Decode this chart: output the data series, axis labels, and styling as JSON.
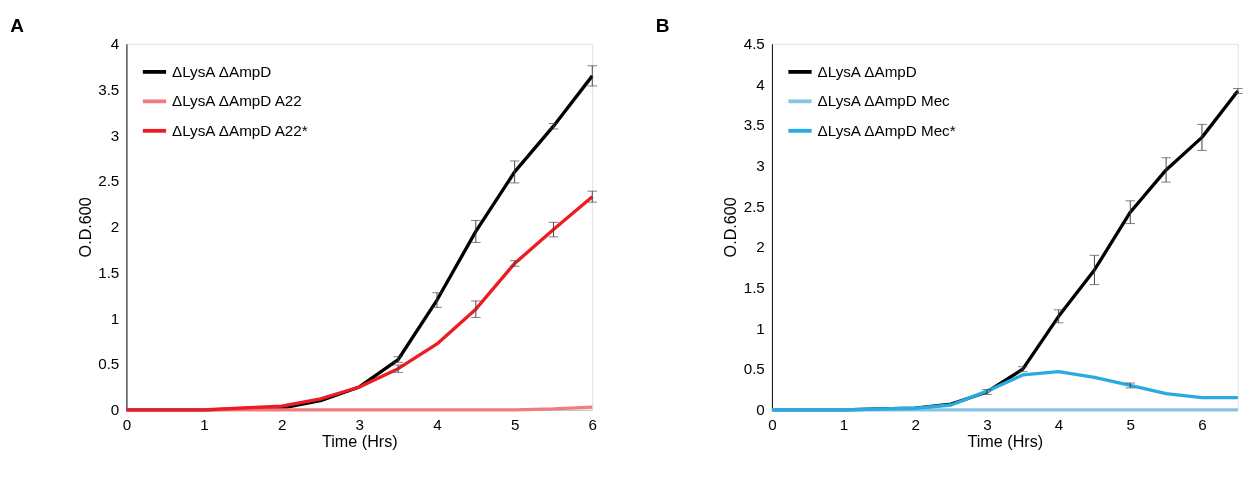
{
  "chart_data": [
    {
      "type": "line",
      "title": "A",
      "xlabel": "Time (Hrs)",
      "ylabel": "O.D.600",
      "x": [
        0,
        0.5,
        1,
        1.5,
        2,
        2.5,
        3,
        3.5,
        4,
        4.5,
        5,
        5.5,
        6
      ],
      "xlim": [
        0,
        6
      ],
      "xticks": [
        0,
        1,
        2,
        3,
        4,
        5,
        6
      ],
      "ylim": [
        0,
        4
      ],
      "yticks": [
        0,
        0.5,
        1,
        1.5,
        2,
        2.5,
        3,
        3.5,
        4
      ],
      "grid": false,
      "legend": "top left",
      "marker": "none",
      "line_style": "solid",
      "series": [
        {
          "name": "ΔLysA ΔAmpD",
          "color": "#000000",
          "values": [
            0,
            0,
            0,
            0.01,
            0.02,
            0.1,
            0.25,
            0.55,
            1.2,
            1.95,
            2.6,
            3.1,
            3.65
          ],
          "errors": [
            null,
            null,
            null,
            null,
            null,
            null,
            null,
            0.03,
            0.08,
            0.12,
            0.12,
            0.03,
            0.11
          ]
        },
        {
          "name": "ΔLysA ΔAmpD A22",
          "color": "#f07c80",
          "values": [
            0,
            0,
            0,
            0,
            0,
            0,
            0,
            0,
            0,
            0,
            0,
            0.01,
            0.03
          ]
        },
        {
          "name": "ΔLysA ΔAmpD A22*",
          "color": "#ed1c24",
          "values": [
            0,
            0,
            0,
            0.02,
            0.04,
            0.12,
            0.25,
            0.45,
            0.72,
            1.1,
            1.6,
            1.97,
            2.33
          ],
          "errors": [
            null,
            null,
            null,
            null,
            null,
            null,
            null,
            0.04,
            null,
            0.09,
            0.03,
            0.08,
            0.06
          ]
        }
      ]
    },
    {
      "type": "line",
      "title": "B",
      "xlabel": "Time (Hrs)",
      "ylabel": "O.D.600",
      "x": [
        0,
        0.5,
        1,
        1.5,
        2,
        2.5,
        3,
        3.5,
        4,
        4.5,
        5,
        5.5,
        6,
        6.5
      ],
      "xlim": [
        0,
        6.5
      ],
      "xticks": [
        0,
        1,
        2,
        3,
        4,
        5,
        6
      ],
      "ylim": [
        0,
        4.5
      ],
      "yticks": [
        0,
        0.5,
        1,
        1.5,
        2,
        2.5,
        3,
        3.5,
        4,
        4.5
      ],
      "grid": false,
      "legend": "top left",
      "marker": "none",
      "line_style": "solid",
      "series": [
        {
          "name": "ΔLysA ΔAmpD",
          "color": "#000000",
          "values": [
            0,
            0,
            0,
            0.01,
            0.02,
            0.07,
            0.22,
            0.5,
            1.15,
            1.72,
            2.43,
            2.95,
            3.35,
            3.92
          ],
          "errors": [
            null,
            null,
            null,
            null,
            null,
            null,
            0.03,
            0.03,
            0.08,
            0.18,
            0.14,
            0.15,
            0.16,
            0.03
          ]
        },
        {
          "name": "ΔLysA ΔAmpD Mec",
          "color": "#87c4e4",
          "values": [
            0,
            0,
            0,
            0,
            0,
            0,
            0,
            0,
            0,
            0,
            0,
            0,
            0,
            0
          ]
        },
        {
          "name": "ΔLysA ΔAmpD Mec*",
          "color": "#29abe2",
          "values": [
            0,
            0,
            0,
            0.01,
            0.02,
            0.06,
            0.23,
            0.43,
            0.47,
            0.4,
            0.3,
            0.2,
            0.15,
            0.15
          ],
          "errors": [
            null,
            null,
            null,
            null,
            null,
            null,
            null,
            null,
            null,
            null,
            0.03,
            null,
            null,
            null
          ]
        }
      ]
    }
  ]
}
